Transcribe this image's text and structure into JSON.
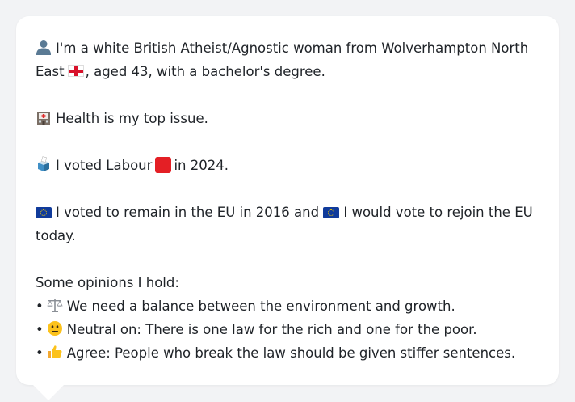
{
  "profile": {
    "intro_part1": "I'm a white British Atheist/Agnostic woman from Wolverhampton North East",
    "intro_part2": ", aged 43, with a bachelor's degree.",
    "health": "Health is my top issue.",
    "vote_part1": "I voted Labour",
    "vote_part2": "in 2024.",
    "eu_part1": "I voted to remain in the EU in 2016 and",
    "eu_part2": "I would vote to rejoin the EU today.",
    "opinions_heading": "Some opinions I hold:",
    "opinions": [
      {
        "bullet": "•",
        "icon": "balance-scale-icon",
        "text": "We need a balance between the environment and growth."
      },
      {
        "bullet": "•",
        "icon": "neutral-face-icon",
        "text": "Neutral on: There is one law for the rich and one for the poor."
      },
      {
        "bullet": "•",
        "icon": "thumbs-up-icon",
        "text": "Agree: People who break the law should be given stiffer sentences."
      }
    ]
  },
  "colors": {
    "background": "#f2f3f5",
    "card": "#ffffff",
    "text": "#1f2328",
    "labour_red": "#e41f25",
    "eu_blue": "#103b9b",
    "eu_gold": "#ffd400",
    "england_red": "#d8112a"
  }
}
